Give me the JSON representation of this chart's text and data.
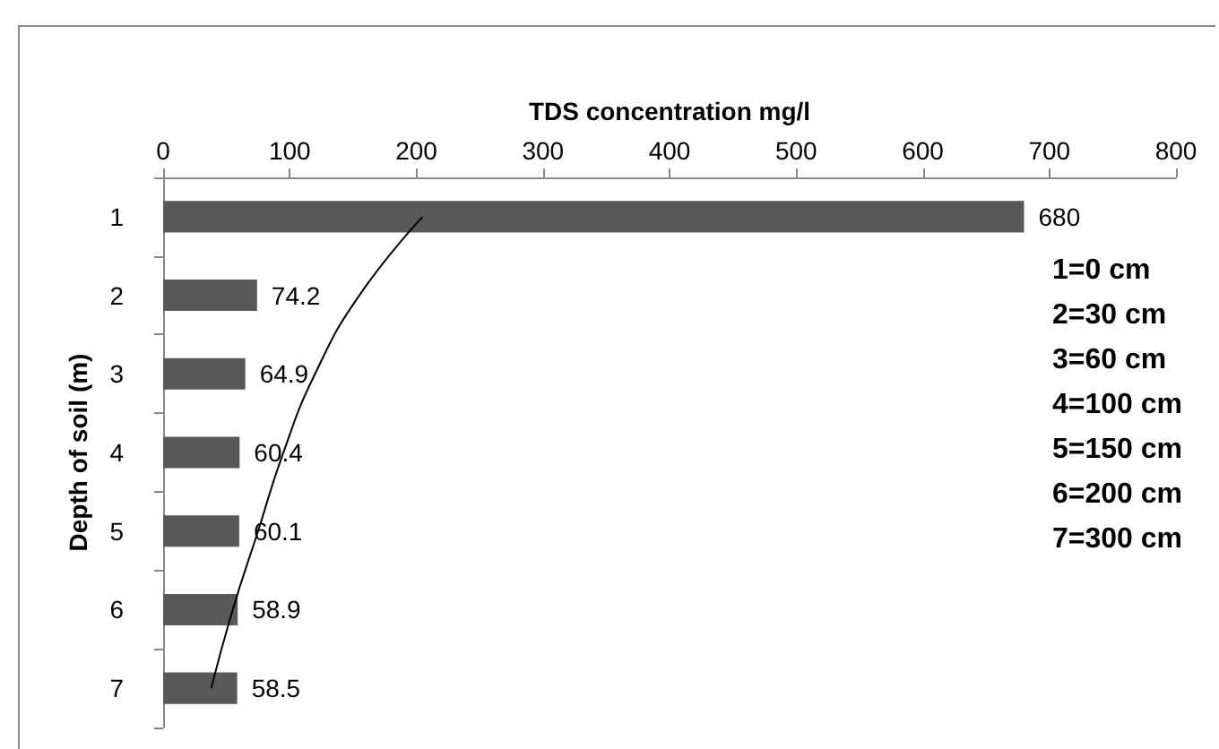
{
  "chart_data": {
    "type": "bar",
    "orientation": "horizontal",
    "xlabel": "TDS concentration mg/l",
    "ylabel": "Depth of soil (m)",
    "categories": [
      "1",
      "2",
      "3",
      "4",
      "5",
      "6",
      "7"
    ],
    "series": [
      {
        "color": "#595959",
        "values": [
          680,
          74.2,
          64.9,
          60.4,
          60.1,
          58.9,
          58.5
        ],
        "value_labels": [
          "680",
          "74.2",
          "64.9",
          "60.4",
          "60.1",
          "58.9",
          "58.5"
        ]
      },
      {
        "type": "line",
        "color": "#000000",
        "marker": "none",
        "values": [
          205,
          155,
          120,
          95,
          75,
          55,
          38
        ]
      }
    ],
    "xlim": [
      0,
      800
    ],
    "xticks": [
      0,
      100,
      200,
      300,
      400,
      500,
      600,
      700,
      800
    ],
    "grid": false,
    "annotations": [
      "1=0 cm",
      "2=30 cm",
      "3=60 cm",
      "4=100 cm",
      "5=150 cm",
      "6=200 cm",
      "7=300 cm"
    ]
  }
}
